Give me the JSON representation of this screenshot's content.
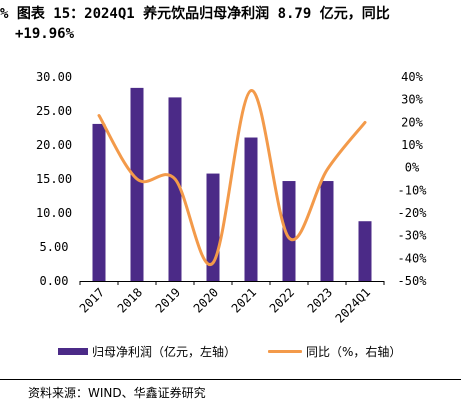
{
  "title": {
    "line1": "%  图表 15：2024Q1 养元饮品归母净利润 8.79 亿元，同比",
    "line2": "+19.96%"
  },
  "chart_data": {
    "type": "bar",
    "categories": [
      "2017",
      "2018",
      "2019",
      "2020",
      "2021",
      "2022",
      "2023",
      "2024Q1"
    ],
    "series": [
      {
        "name": "归母净利润（亿元，左轴）",
        "type": "bar",
        "axis": "left",
        "color": "#4B2A87",
        "values": [
          23.1,
          28.4,
          27.0,
          15.8,
          21.1,
          14.7,
          14.7,
          8.79
        ]
      },
      {
        "name": "同比（%，右轴）",
        "type": "line",
        "axis": "right",
        "color": "#F39A4A",
        "values": [
          23,
          -5,
          -5,
          -42,
          34,
          -31,
          -1,
          19.96
        ]
      }
    ],
    "left_axis": {
      "ylim": [
        0,
        30
      ],
      "ticks": [
        "0.00",
        "5.00",
        "10.00",
        "15.00",
        "20.00",
        "25.00",
        "30.00"
      ]
    },
    "right_axis": {
      "ylim": [
        -50,
        40
      ],
      "ticks": [
        "-50%",
        "-40%",
        "-30%",
        "-20%",
        "-10%",
        "0%",
        "10%",
        "20%",
        "30%",
        "40%"
      ]
    },
    "grid": false,
    "legend_position": "bottom"
  },
  "legend": {
    "bar_label": "归母净利润（亿元，左轴）",
    "line_label": "同比（%，右轴）"
  },
  "source": "资料来源：WIND、华鑫证券研究"
}
